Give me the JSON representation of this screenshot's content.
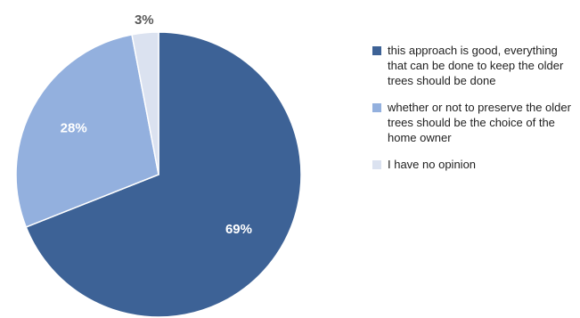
{
  "chart_data": {
    "type": "pie",
    "slices": [
      {
        "label": "this approach is good, everything that can be done to keep  the older trees should be done",
        "value": 69,
        "display": "69%",
        "color": "#3d6296",
        "label_color": "#ffffff"
      },
      {
        "label": "whether or not to preserve the older trees should be the choice of the home owner",
        "value": 28,
        "display": "28%",
        "color": "#93b0de",
        "label_color": "#ffffff"
      },
      {
        "label": "I have no opinion",
        "value": 3,
        "display": "3%",
        "color": "#dbe2f0",
        "label_color": "#595959"
      }
    ],
    "legend_position": "right",
    "start": "top",
    "direction": "clockwise"
  }
}
